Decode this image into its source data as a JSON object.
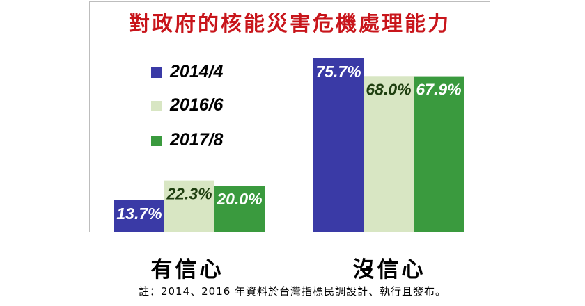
{
  "chart_data": {
    "type": "bar",
    "title": "對政府的核能災害危機處理能力",
    "categories": [
      "有信心",
      "沒信心"
    ],
    "series": [
      {
        "name": "2014/4",
        "values": [
          13.7,
          75.7
        ],
        "labels": [
          "13.7%",
          "75.7%"
        ],
        "color": "#3a3aa6",
        "label_color": "#ffffff"
      },
      {
        "name": "2016/6",
        "values": [
          22.3,
          68.0
        ],
        "labels": [
          "22.3%",
          "68.0%"
        ],
        "color": "#d8e6c3",
        "label_color": "#1f3f10"
      },
      {
        "name": "2017/8",
        "values": [
          20.0,
          67.9
        ],
        "labels": [
          "20.0%",
          "67.9%"
        ],
        "color": "#3a9a3e",
        "label_color": "#ffffff"
      }
    ],
    "ylim": [
      0,
      100
    ],
    "grid": false,
    "legend_position": "top-left"
  },
  "footnote": "註：2014、2016 年資料於台灣指標民調設計、執行且發布。",
  "colors": {
    "title": "#c8151b",
    "frame": "#bdbdbd"
  }
}
